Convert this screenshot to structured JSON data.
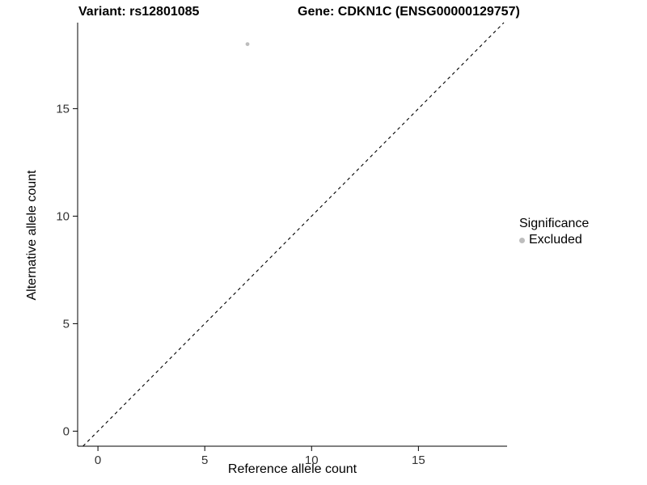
{
  "titles": {
    "variant": "Variant: rs12801085",
    "gene": "Gene: CDKN1C (ENSG00000129757)"
  },
  "axes": {
    "x_label": "Reference allele count",
    "y_label": "Alternative allele count"
  },
  "legend": {
    "title": "Significance",
    "items": [
      {
        "label": "Excluded",
        "color": "#bdbdbd"
      }
    ]
  },
  "chart_data": {
    "type": "scatter",
    "title": "Variant: rs12801085   Gene: CDKN1C (ENSG00000129757)",
    "xlabel": "Reference allele count",
    "ylabel": "Alternative allele count",
    "xlim": [
      -0.95,
      19.15
    ],
    "ylim": [
      -0.7,
      19.0
    ],
    "xticks": [
      0,
      5,
      10,
      15
    ],
    "yticks": [
      0,
      5,
      10,
      15
    ],
    "grid": false,
    "legend_position": "right",
    "series": [
      {
        "name": "Excluded",
        "color": "#bdbdbd",
        "points": [
          {
            "x": 7,
            "y": 18
          }
        ]
      }
    ],
    "identity_line": {
      "style": "dashed",
      "color": "#000000",
      "from": -0.7,
      "to": 19.0
    },
    "axis_color": "#000000",
    "tick_label_color": "#333333"
  }
}
